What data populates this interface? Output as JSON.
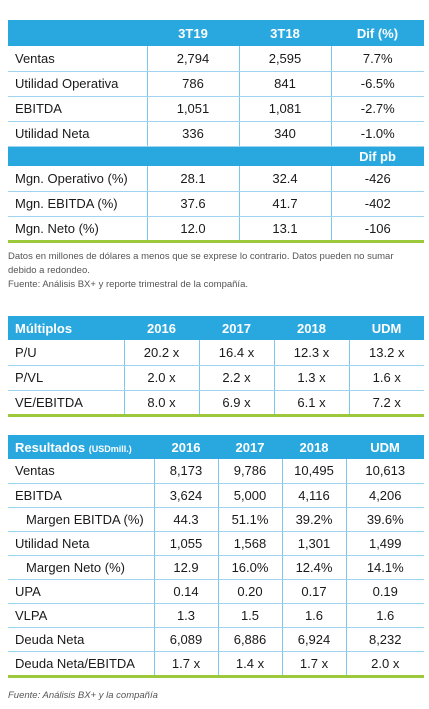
{
  "t1": {
    "headers": [
      "",
      "3T19",
      "3T18",
      "Dif (%)"
    ],
    "rows": [
      {
        "label": "Ventas",
        "a": "2,794",
        "b": "2,595",
        "c": "7.7%"
      },
      {
        "label": "Utilidad Operativa",
        "a": "786",
        "b": "841",
        "c": "-6.5%"
      },
      {
        "label": "EBITDA",
        "a": "1,051",
        "b": "1,081",
        "c": "-2.7%"
      },
      {
        "label": "Utilidad Neta",
        "a": "336",
        "b": "340",
        "c": "-1.0%"
      }
    ],
    "subheader": "Dif pb",
    "rows2": [
      {
        "label": "Mgn. Operativo (%)",
        "a": "28.1",
        "b": "32.4",
        "c": "-426"
      },
      {
        "label": "Mgn. EBITDA (%)",
        "a": "37.6",
        "b": "41.7",
        "c": "-402"
      },
      {
        "label": "Mgn. Neto (%)",
        "a": "12.0",
        "b": "13.1",
        "c": "-106"
      }
    ]
  },
  "note": {
    "line1": "Datos en millones de dólares a menos que se exprese lo contrario. Datos pueden no sumar debido a redondeo.",
    "line2": "Fuente: Análisis BX+ y reporte trimestral de la compañía."
  },
  "t2": {
    "headers": [
      "Múltiplos",
      "2016",
      "2017",
      "2018",
      "UDM"
    ],
    "rows": [
      {
        "label": "P/U",
        "v": [
          "20.2 x",
          "16.4 x",
          "12.3 x",
          "13.2 x"
        ]
      },
      {
        "label": "P/VL",
        "v": [
          "2.0 x",
          "2.2 x",
          "1.3 x",
          "1.6 x"
        ]
      },
      {
        "label": "VE/EBITDA",
        "v": [
          "8.0 x",
          "6.9 x",
          "6.1 x",
          "7.2 x"
        ]
      }
    ]
  },
  "t3": {
    "title": "Resultados",
    "unit": "(USDmill.)",
    "headers": [
      "2016",
      "2017",
      "2018",
      "UDM"
    ],
    "rows": [
      {
        "label": "Ventas",
        "v": [
          "8,173",
          "9,786",
          "10,495",
          "10,613"
        ]
      },
      {
        "label": "EBITDA",
        "v": [
          "3,624",
          "5,000",
          "4,116",
          "4,206"
        ]
      },
      {
        "label": "Margen EBITDA (%)",
        "v": [
          "44.3",
          "51.1%",
          "39.2%",
          "39.6%"
        ]
      },
      {
        "label": "Utilidad Neta",
        "v": [
          "1,055",
          "1,568",
          "1,301",
          "1,499"
        ]
      },
      {
        "label": "Margen Neto (%)",
        "v": [
          "12.9",
          "16.0%",
          "12.4%",
          "14.1%"
        ]
      },
      {
        "label": "UPA",
        "v": [
          "0.14",
          "0.20",
          "0.17",
          "0.19"
        ]
      },
      {
        "label": "VLPA",
        "v": [
          "1.3",
          "1.5",
          "1.6",
          "1.6"
        ]
      },
      {
        "label": "Deuda Neta",
        "v": [
          "6,089",
          "6,886",
          "6,924",
          "8,232"
        ]
      },
      {
        "label": "Deuda Neta/EBITDA",
        "v": [
          "1.7 x",
          "1.4 x",
          "1.7 x",
          "2.0 x"
        ]
      }
    ]
  },
  "footer": "Fuente: Análisis BX+ y la compañía"
}
